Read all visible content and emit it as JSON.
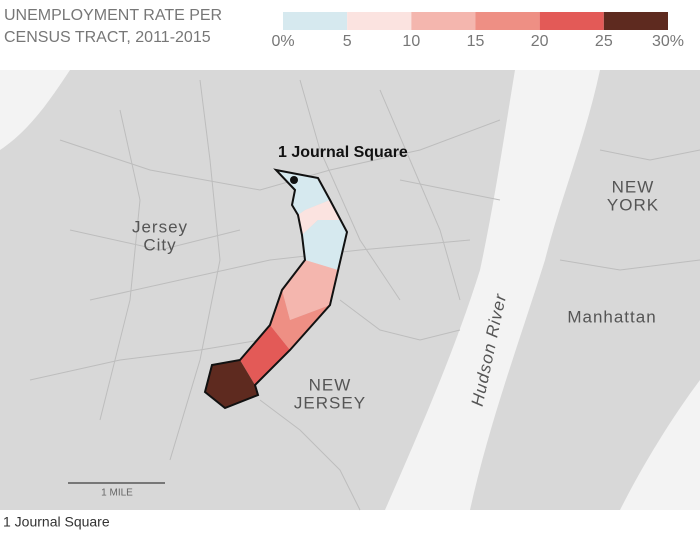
{
  "legend": {
    "title_lines": [
      "UNEMPLOYMENT RATE PER",
      "CENSUS TRACT, 2011-2015"
    ],
    "ticks": [
      {
        "value": 0,
        "label": "0%"
      },
      5,
      10,
      15,
      20,
      25,
      {
        "value": 30,
        "label": "30%"
      }
    ],
    "colors": [
      "#d6e9ef",
      "#fbe3e0",
      "#f4b6ae",
      "#ee8f84",
      "#e35a57",
      "#5e2a1f"
    ]
  },
  "map": {
    "highlight_label": "1 Journal Square",
    "places": [
      {
        "lines": [
          "Jersey",
          "City"
        ]
      },
      {
        "lines": [
          "NEW",
          "YORK"
        ]
      },
      {
        "lines": [
          "Manhattan"
        ]
      },
      {
        "lines": [
          "NEW",
          "JERSEY"
        ]
      },
      {
        "lines": [
          "Hudson River"
        ]
      }
    ],
    "scale_label": "1 MILE"
  },
  "caption": "1 Journal Square"
}
